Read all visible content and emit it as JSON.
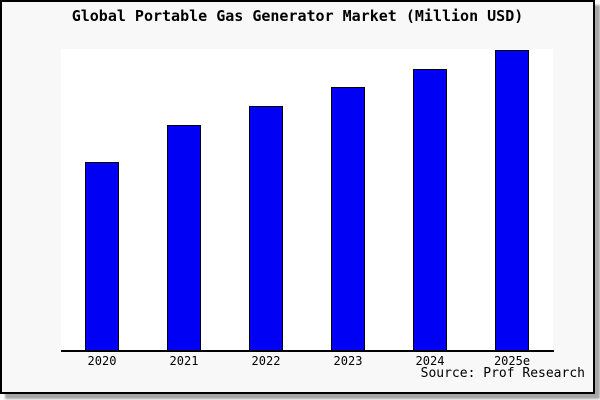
{
  "window": {
    "background_color": "#f8f8f8",
    "border_color": "#000000",
    "shadow_color": "#a6a6a6"
  },
  "header": {
    "title": "Global Portable Gas Generator Market (Million USD)"
  },
  "footer": {
    "source_label": "Source: Prof Research"
  },
  "chart_data": {
    "type": "bar",
    "title": "Global Portable Gas Generator Market (Million USD)",
    "categories": [
      "2020",
      "2021",
      "2022",
      "2023",
      "2024",
      "2025e"
    ],
    "values": [
      62.6,
      74.7,
      81.0,
      87.3,
      93.3,
      99.6
    ],
    "value_scale": "relative height, % of plot height (no y-axis tick labels shown in chart)",
    "xlabel": "",
    "ylabel": "",
    "ylim": [
      0,
      100
    ],
    "grid": false,
    "legend": false,
    "bar_color": "#0000f5",
    "bar_border_color": "#000000",
    "plot_background": "#ffffff",
    "axis_line_color": "#000000",
    "source": "Source: Prof Research"
  }
}
